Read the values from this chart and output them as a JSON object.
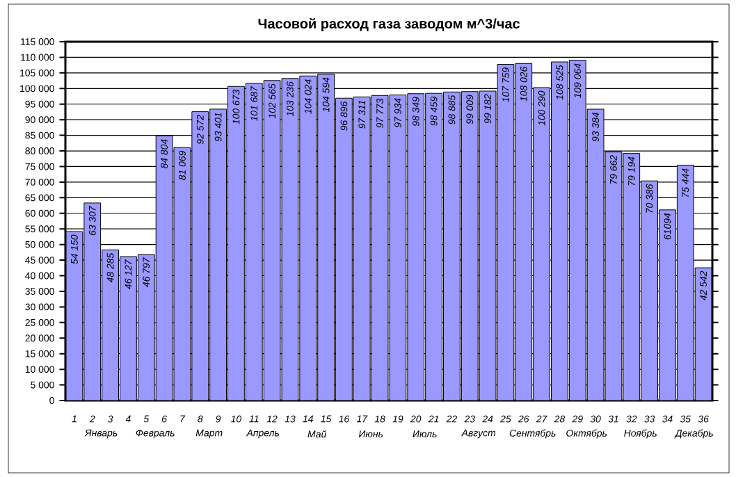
{
  "chart_data": {
    "type": "bar",
    "title": "Часовой расход газа заводом м^3/час",
    "categories": [
      "1",
      "2",
      "3",
      "4",
      "5",
      "6",
      "7",
      "8",
      "9",
      "10",
      "11",
      "12",
      "13",
      "14",
      "15",
      "16",
      "17",
      "18",
      "19",
      "20",
      "21",
      "22",
      "23",
      "24",
      "25",
      "26",
      "27",
      "28",
      "29",
      "30",
      "31",
      "32",
      "33",
      "34",
      "35",
      "36"
    ],
    "values": [
      54150,
      63307,
      48285,
      46127,
      46797,
      84804,
      81069,
      92572,
      93401,
      100673,
      101687,
      102565,
      103236,
      104024,
      104594,
      96896,
      97311,
      97773,
      97934,
      98349,
      98459,
      98885,
      99009,
      99182,
      107759,
      108026,
      100290,
      108525,
      109064,
      93384,
      79662,
      79194,
      70386,
      61094,
      75444,
      42542
    ],
    "value_labels": [
      "54 150",
      "63 307",
      "48 285",
      "46 127",
      "46 797",
      "84 804",
      "81 069",
      "92 572",
      "93 401",
      "100 673",
      "101 687",
      "102 565",
      "103 236",
      "104 024",
      "104 594",
      "96 896",
      "97 311",
      "97 773",
      "97 934",
      "98 349",
      "98 459",
      "98 885",
      "99 009",
      "99 182",
      "107 759",
      "108 026",
      "100 290",
      "108 525",
      "109 064",
      "93 384",
      "79 662",
      "79 194",
      "70 386",
      "61094",
      "75 444",
      "42 542"
    ],
    "color": "#9999ff",
    "annotations": [
      "Январь",
      "Февраль",
      "Март",
      "Апрель",
      "Май",
      "Июнь",
      "Июль",
      "Август",
      "Сентябрь",
      "Октябрь",
      "Ноябрь",
      "Декабрь"
    ],
    "ylim": [
      0,
      115000
    ],
    "yticks": [
      {
        "value": 0,
        "label": "0"
      },
      {
        "value": 5000,
        "label": "5 000"
      },
      {
        "value": 10000,
        "label": "10 000"
      },
      {
        "value": 15000,
        "label": "15 000"
      },
      {
        "value": 20000,
        "label": "20 000"
      },
      {
        "value": 25000,
        "label": "25 000"
      },
      {
        "value": 30000,
        "label": "30 000"
      },
      {
        "value": 35000,
        "label": "35 000"
      },
      {
        "value": 40000,
        "label": "40 000"
      },
      {
        "value": 45000,
        "label": "45 000"
      },
      {
        "value": 50000,
        "label": "50 000"
      },
      {
        "value": 55000,
        "label": "55 000"
      },
      {
        "value": 60000,
        "label": "60 000"
      },
      {
        "value": 65000,
        "label": "65 000"
      },
      {
        "value": 70000,
        "label": "70 000"
      },
      {
        "value": 75000,
        "label": "75 000"
      },
      {
        "value": 80000,
        "label": "80 000"
      },
      {
        "value": 85000,
        "label": "85 000"
      },
      {
        "value": 90000,
        "label": "90 000"
      },
      {
        "value": 95000,
        "label": "95 000"
      },
      {
        "value": 100000,
        "label": "100 000"
      },
      {
        "value": 105000,
        "label": "105 000"
      },
      {
        "value": 110000,
        "label": "110 000"
      },
      {
        "value": 115000,
        "label": "115 000"
      }
    ],
    "grid": "y"
  }
}
